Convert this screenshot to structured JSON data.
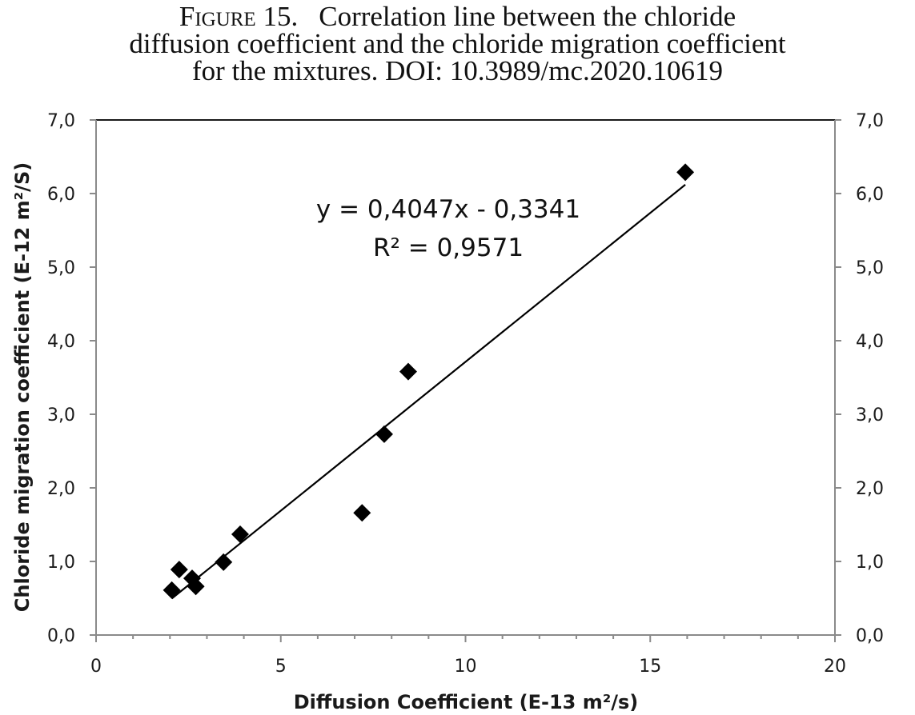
{
  "caption": {
    "figure_label": "Figure 15.",
    "line1": "Correlation line between the chloride",
    "line2": "diffusion coefficient and the chloride migration coefficient",
    "line3": "for the mixtures. DOI: 10.3989/mc.2020.10619"
  },
  "chart_data": {
    "type": "scatter",
    "xlabel": "Diffusion Coefficient (E-13 m²/s)",
    "ylabel": "Chloride migration coefficient (E-12 m²/S)",
    "xlim": [
      0,
      20
    ],
    "ylim": [
      0,
      7
    ],
    "x_ticks": [
      "0",
      "5",
      "10",
      "15",
      "20"
    ],
    "y_ticks": [
      "0,0",
      "1,0",
      "2,0",
      "3,0",
      "4,0",
      "5,0",
      "6,0",
      "7,0"
    ],
    "y2_ticks": [
      "0,0",
      "1,0",
      "2,0",
      "3,0",
      "4,0",
      "5,0",
      "6,0",
      "7,0"
    ],
    "grid": false,
    "marker": "diamond",
    "marker_color": "#000000",
    "points": [
      {
        "x": 2.05,
        "y": 0.61
      },
      {
        "x": 2.25,
        "y": 0.89
      },
      {
        "x": 2.6,
        "y": 0.77
      },
      {
        "x": 2.7,
        "y": 0.66
      },
      {
        "x": 3.45,
        "y": 0.99
      },
      {
        "x": 3.9,
        "y": 1.37
      },
      {
        "x": 7.2,
        "y": 1.66
      },
      {
        "x": 7.8,
        "y": 2.73
      },
      {
        "x": 8.45,
        "y": 3.58
      },
      {
        "x": 15.95,
        "y": 6.29
      }
    ],
    "trendline": {
      "slope": 0.4047,
      "intercept": -0.3341,
      "x_range": [
        2.05,
        15.95
      ],
      "equation": "y = 0,4047x - 0,3341",
      "r_squared": "R² = 0,9571"
    }
  }
}
